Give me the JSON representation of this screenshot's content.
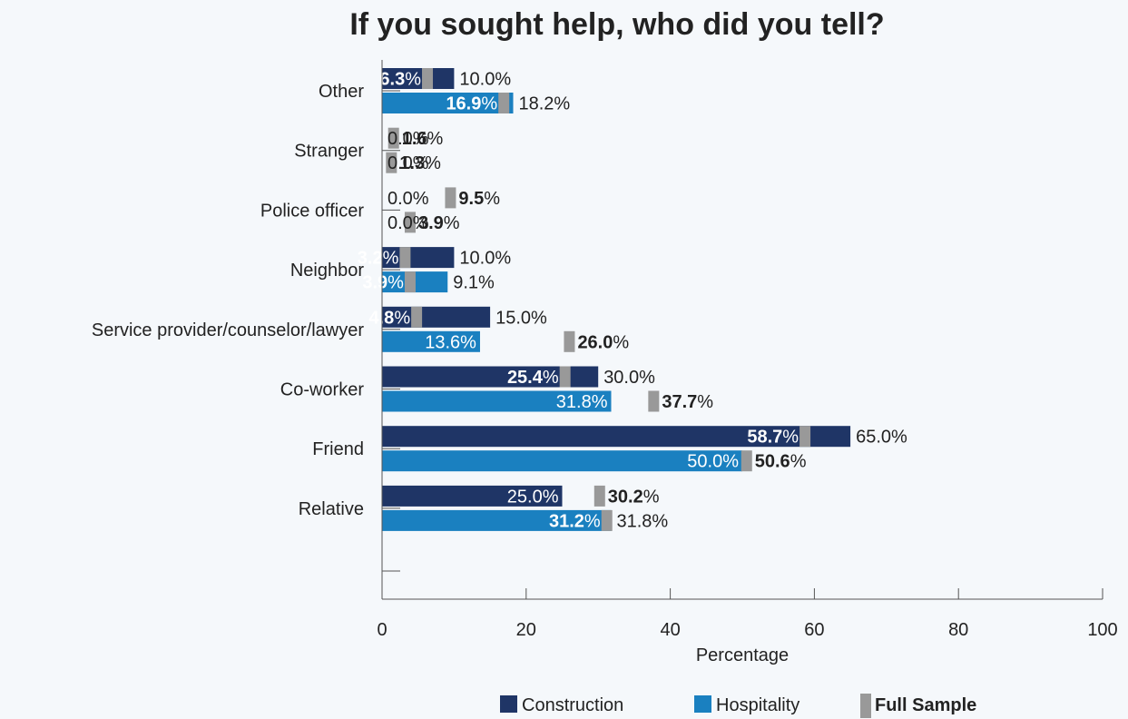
{
  "chart_data": {
    "type": "bar",
    "orientation": "horizontal",
    "title": "If you sought help, who did you tell?",
    "xlabel": "Percentage",
    "ylabel": "",
    "xlim": [
      0,
      100
    ],
    "xticks": [
      "0",
      "20",
      "40",
      "60",
      "80",
      "100"
    ],
    "categories": [
      "Other",
      "Stranger",
      "Police officer",
      "Neighbor",
      "Service provider/counselor/lawyer",
      "Co-worker",
      "Friend",
      "Relative"
    ],
    "series": [
      {
        "name": "Construction",
        "color": "#1f3566",
        "values": [
          10.0,
          0.0,
          0.0,
          10.0,
          15.0,
          30.0,
          65.0,
          25.0
        ],
        "labels": [
          "10.0%",
          "0.0%",
          "0.0%",
          "10.0%",
          "15.0%",
          "30.0%",
          "65.0%",
          "25.0%"
        ]
      },
      {
        "name": "Hospitality",
        "color": "#1a80c0",
        "values": [
          18.2,
          0.0,
          0.0,
          9.1,
          13.6,
          31.8,
          50.0,
          31.8
        ],
        "labels": [
          "18.2%",
          "0.0%",
          "0.0%",
          "9.1%",
          "13.6%",
          "31.8%",
          "50.0%",
          "31.8%"
        ]
      }
    ],
    "full_sample": {
      "name": "Full Sample",
      "color": "#999999",
      "construction_group": [
        6.3,
        1.6,
        9.5,
        3.2,
        4.8,
        25.4,
        58.7,
        30.2
      ],
      "construction_group_labels": [
        "6.3",
        "1.6",
        "9.5",
        "3.2",
        "4.8",
        "25.4",
        "58.7",
        "30.2"
      ],
      "hospitality_group": [
        16.9,
        1.3,
        3.9,
        3.9,
        26.0,
        37.7,
        50.6,
        31.2
      ],
      "hospitality_group_labels": [
        "16.9",
        "1.3",
        "3.9",
        "3.9",
        "26.0",
        "37.7",
        "50.6",
        "31.2"
      ],
      "percent_suffix": "%"
    },
    "legend": {
      "position": "bottom-right",
      "items": [
        "Construction",
        "Hospitality",
        "Full Sample"
      ]
    },
    "grid": false
  }
}
